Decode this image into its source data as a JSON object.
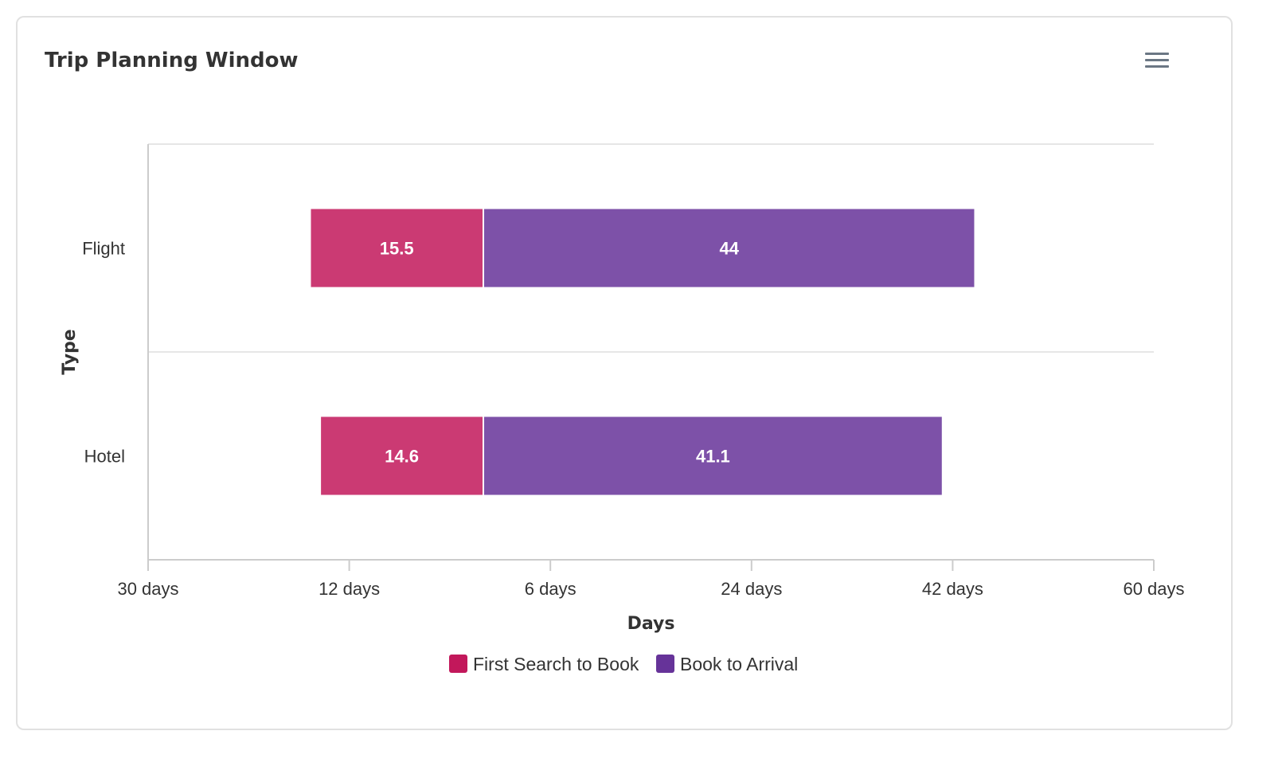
{
  "chart_data": {
    "type": "bar",
    "orientation": "horizontal",
    "stacked": true,
    "title": "Trip Planning Window",
    "xlabel": "Days",
    "ylabel": "Type",
    "categories": [
      "Flight",
      "Hotel"
    ],
    "series": [
      {
        "name": "First Search to Book",
        "values": [
          15.5,
          14.6
        ],
        "color": "#c2185b"
      },
      {
        "name": "Book to Arrival",
        "values": [
          44,
          41.1
        ],
        "color": "#663399"
      }
    ],
    "xlim": [
      -30,
      60
    ],
    "xticks": [
      -30,
      -12,
      6,
      24,
      42,
      60
    ],
    "xtick_labels": [
      "30 days",
      "12 days",
      "6 days",
      "24 days",
      "42 days",
      "60 days"
    ],
    "baseline": 0,
    "grid": "horizontal",
    "legend": "bottom-center"
  },
  "menu": {
    "icon": "hamburger-menu-icon"
  }
}
